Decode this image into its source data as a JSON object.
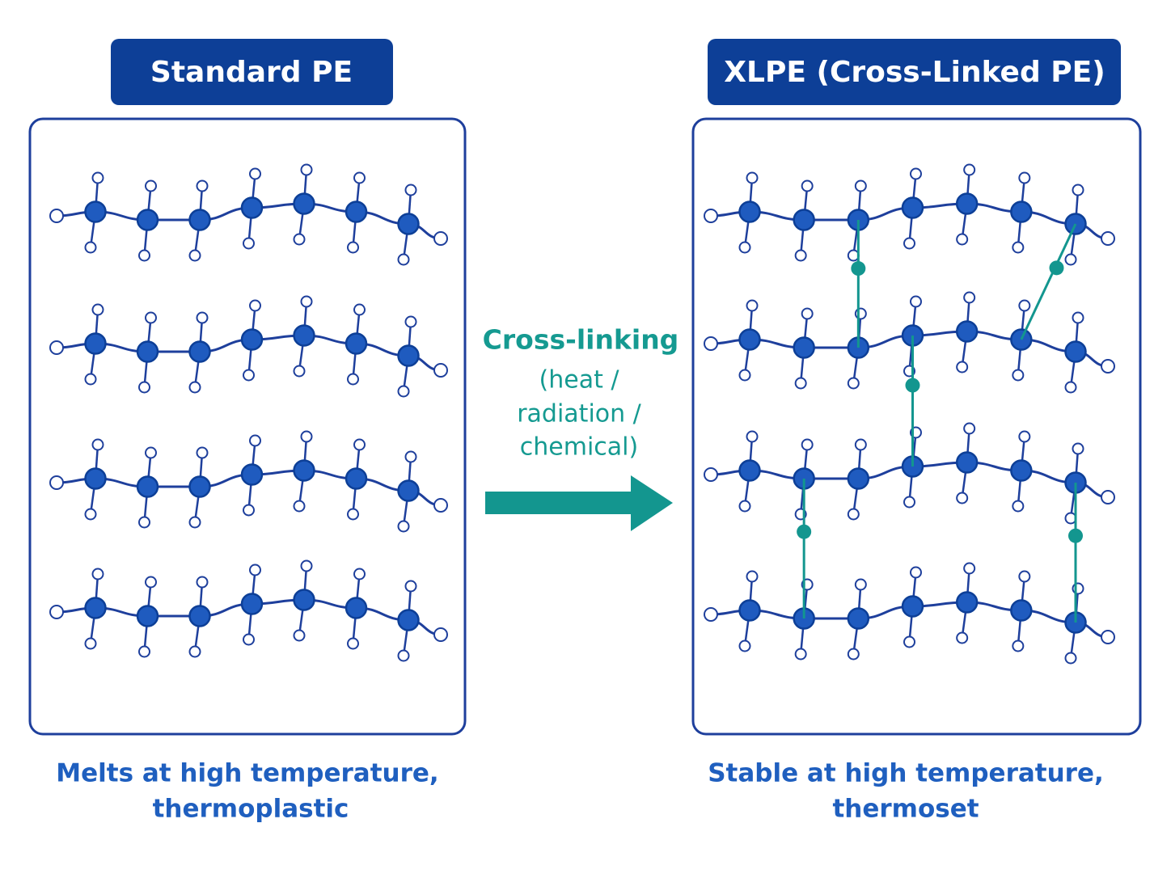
{
  "left": {
    "title": "Standard PE",
    "caption": [
      "Melts at high temperature,",
      "thermoplastic"
    ]
  },
  "right": {
    "title": "XLPE (Cross-Linked PE)",
    "caption": [
      "Stable at high temperature,",
      "thermoset"
    ]
  },
  "arrow": {
    "label": "Cross-linking",
    "conditions": [
      "(heat /",
      "radiation /",
      "chemical)"
    ]
  }
}
